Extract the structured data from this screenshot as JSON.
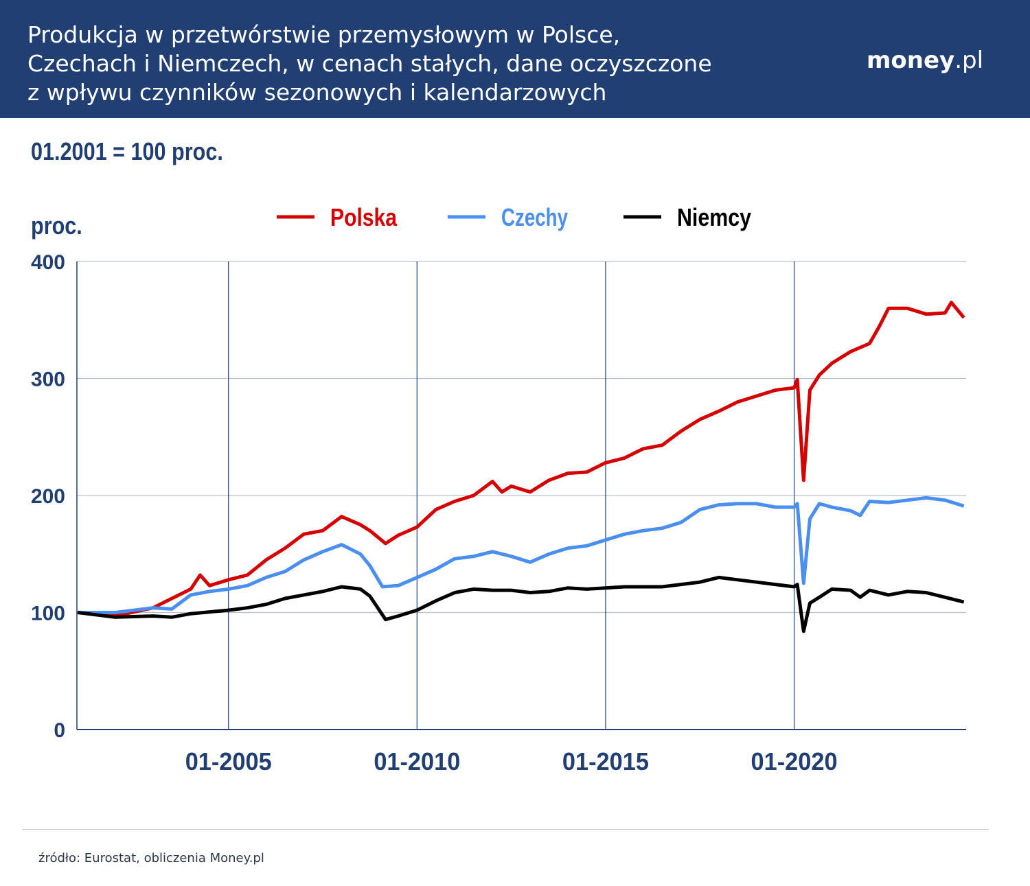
{
  "header": {
    "title_lines": [
      "Produkcja w przetwórstwie przemysłowym w Polsce,",
      "Czechach i Niemczech, w cenach stałych, dane oczyszczone",
      "z wpływu czynników sezonowych i kalendarzowych"
    ],
    "logo_bold": "money",
    "logo_rest": ".pl"
  },
  "subtitle": "01.2001 = 100 proc.",
  "source": "źródło: Eurostat, obliczenia Money.pl",
  "chart_data": {
    "type": "line",
    "ylabel": "proc.",
    "ylim": [
      0,
      400
    ],
    "yticks": [
      0,
      100,
      200,
      300,
      400
    ],
    "xticks": [
      "01-2005",
      "01-2010",
      "01-2015",
      "01-2020"
    ],
    "xrange": [
      "2001-01",
      "2024-07"
    ],
    "grid": true,
    "legend": "top",
    "series": [
      {
        "name": "Polska",
        "color": "#d40000",
        "points": [
          [
            "2001-01",
            100
          ],
          [
            "2002-01",
            97
          ],
          [
            "2003-01",
            104
          ],
          [
            "2003-07",
            112
          ],
          [
            "2004-01",
            120
          ],
          [
            "2004-04",
            132
          ],
          [
            "2004-07",
            123
          ],
          [
            "2005-01",
            128
          ],
          [
            "2005-07",
            132
          ],
          [
            "2006-01",
            145
          ],
          [
            "2006-07",
            155
          ],
          [
            "2007-01",
            167
          ],
          [
            "2007-07",
            170
          ],
          [
            "2008-01",
            182
          ],
          [
            "2008-07",
            175
          ],
          [
            "2008-10",
            170
          ],
          [
            "2009-03",
            159
          ],
          [
            "2009-07",
            166
          ],
          [
            "2010-01",
            173
          ],
          [
            "2010-07",
            188
          ],
          [
            "2011-01",
            195
          ],
          [
            "2011-07",
            200
          ],
          [
            "2012-01",
            212
          ],
          [
            "2012-04",
            203
          ],
          [
            "2012-07",
            208
          ],
          [
            "2013-01",
            203
          ],
          [
            "2013-07",
            213
          ],
          [
            "2014-01",
            219
          ],
          [
            "2014-07",
            220
          ],
          [
            "2015-01",
            228
          ],
          [
            "2015-07",
            232
          ],
          [
            "2016-01",
            240
          ],
          [
            "2016-07",
            243
          ],
          [
            "2017-01",
            255
          ],
          [
            "2017-07",
            265
          ],
          [
            "2018-01",
            272
          ],
          [
            "2018-07",
            280
          ],
          [
            "2019-01",
            285
          ],
          [
            "2019-07",
            290
          ],
          [
            "2020-01",
            292
          ],
          [
            "2020-02",
            299
          ],
          [
            "2020-04",
            213
          ],
          [
            "2020-06",
            290
          ],
          [
            "2020-09",
            303
          ],
          [
            "2021-01",
            313
          ],
          [
            "2021-07",
            323
          ],
          [
            "2022-01",
            330
          ],
          [
            "2022-04",
            344
          ],
          [
            "2022-07",
            360
          ],
          [
            "2023-01",
            360
          ],
          [
            "2023-07",
            355
          ],
          [
            "2024-01",
            356
          ],
          [
            "2024-03",
            365
          ],
          [
            "2024-07",
            352
          ]
        ]
      },
      {
        "name": "Czechy",
        "color": "#4a8ff0",
        "points": [
          [
            "2001-01",
            100
          ],
          [
            "2002-01",
            100
          ],
          [
            "2003-01",
            104
          ],
          [
            "2003-07",
            103
          ],
          [
            "2004-01",
            115
          ],
          [
            "2004-07",
            118
          ],
          [
            "2005-01",
            120
          ],
          [
            "2005-07",
            123
          ],
          [
            "2006-01",
            130
          ],
          [
            "2006-07",
            135
          ],
          [
            "2007-01",
            145
          ],
          [
            "2007-07",
            152
          ],
          [
            "2008-01",
            158
          ],
          [
            "2008-07",
            150
          ],
          [
            "2008-10",
            140
          ],
          [
            "2009-02",
            122
          ],
          [
            "2009-07",
            123
          ],
          [
            "2010-01",
            130
          ],
          [
            "2010-07",
            137
          ],
          [
            "2011-01",
            146
          ],
          [
            "2011-07",
            148
          ],
          [
            "2012-01",
            152
          ],
          [
            "2012-07",
            148
          ],
          [
            "2013-01",
            143
          ],
          [
            "2013-07",
            150
          ],
          [
            "2014-01",
            155
          ],
          [
            "2014-07",
            157
          ],
          [
            "2015-01",
            162
          ],
          [
            "2015-07",
            167
          ],
          [
            "2016-01",
            170
          ],
          [
            "2016-07",
            172
          ],
          [
            "2017-01",
            177
          ],
          [
            "2017-07",
            188
          ],
          [
            "2018-01",
            192
          ],
          [
            "2018-07",
            193
          ],
          [
            "2019-01",
            193
          ],
          [
            "2019-07",
            190
          ],
          [
            "2020-01",
            190
          ],
          [
            "2020-02",
            193
          ],
          [
            "2020-04",
            125
          ],
          [
            "2020-06",
            180
          ],
          [
            "2020-09",
            193
          ],
          [
            "2021-01",
            190
          ],
          [
            "2021-07",
            187
          ],
          [
            "2021-10",
            183
          ],
          [
            "2022-01",
            195
          ],
          [
            "2022-07",
            194
          ],
          [
            "2023-01",
            196
          ],
          [
            "2023-07",
            198
          ],
          [
            "2024-01",
            196
          ],
          [
            "2024-07",
            191
          ]
        ]
      },
      {
        "name": "Niemcy",
        "color": "#000000",
        "points": [
          [
            "2001-01",
            100
          ],
          [
            "2002-01",
            96
          ],
          [
            "2003-01",
            97
          ],
          [
            "2003-07",
            96
          ],
          [
            "2004-01",
            99
          ],
          [
            "2005-01",
            102
          ],
          [
            "2005-07",
            104
          ],
          [
            "2006-01",
            107
          ],
          [
            "2006-07",
            112
          ],
          [
            "2007-01",
            115
          ],
          [
            "2007-07",
            118
          ],
          [
            "2008-01",
            122
          ],
          [
            "2008-07",
            120
          ],
          [
            "2008-10",
            114
          ],
          [
            "2009-03",
            94
          ],
          [
            "2009-07",
            97
          ],
          [
            "2010-01",
            102
          ],
          [
            "2010-07",
            110
          ],
          [
            "2011-01",
            117
          ],
          [
            "2011-07",
            120
          ],
          [
            "2012-01",
            119
          ],
          [
            "2012-07",
            119
          ],
          [
            "2013-01",
            117
          ],
          [
            "2013-07",
            118
          ],
          [
            "2014-01",
            121
          ],
          [
            "2014-07",
            120
          ],
          [
            "2015-01",
            121
          ],
          [
            "2015-07",
            122
          ],
          [
            "2016-01",
            122
          ],
          [
            "2016-07",
            122
          ],
          [
            "2017-01",
            124
          ],
          [
            "2017-07",
            126
          ],
          [
            "2018-01",
            130
          ],
          [
            "2018-07",
            128
          ],
          [
            "2019-01",
            126
          ],
          [
            "2019-07",
            124
          ],
          [
            "2020-01",
            122
          ],
          [
            "2020-02",
            124
          ],
          [
            "2020-04",
            84
          ],
          [
            "2020-06",
            108
          ],
          [
            "2020-09",
            113
          ],
          [
            "2021-01",
            120
          ],
          [
            "2021-07",
            119
          ],
          [
            "2021-10",
            113
          ],
          [
            "2022-01",
            119
          ],
          [
            "2022-07",
            115
          ],
          [
            "2023-01",
            118
          ],
          [
            "2023-07",
            117
          ],
          [
            "2024-01",
            113
          ],
          [
            "2024-07",
            109
          ]
        ]
      }
    ]
  }
}
